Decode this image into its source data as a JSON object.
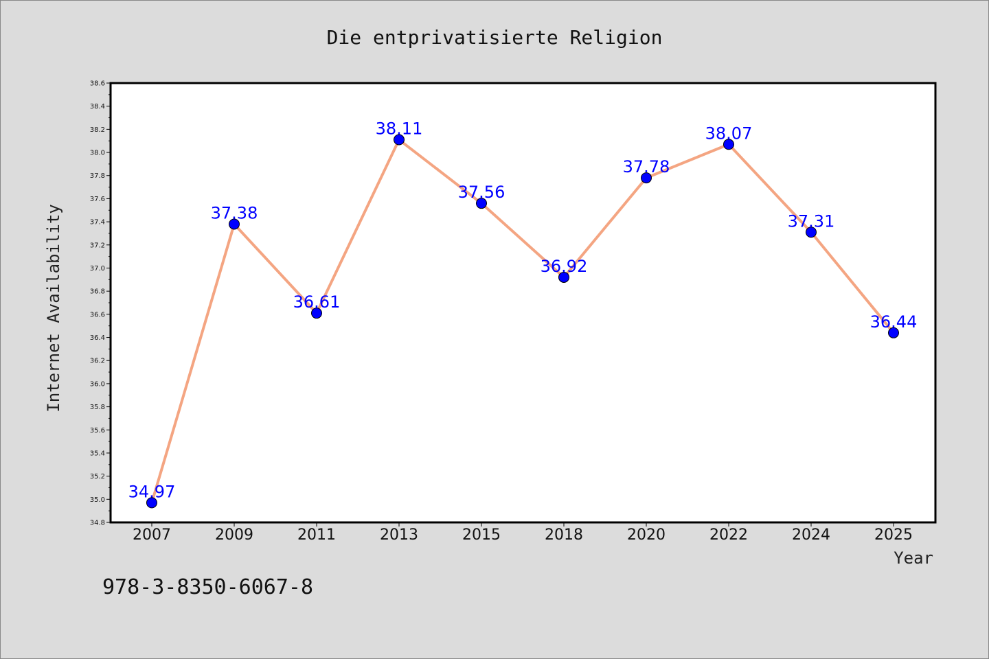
{
  "chart_data": {
    "type": "line",
    "title": "Die entprivatisierte Religion",
    "xlabel": "Year",
    "ylabel": "Internet Availability",
    "categories": [
      "2007",
      "2009",
      "2011",
      "2013",
      "2015",
      "2018",
      "2020",
      "2022",
      "2024",
      "2025"
    ],
    "series": [
      {
        "values": [
          34.97,
          37.38,
          36.61,
          38.11,
          37.56,
          36.92,
          37.78,
          38.07,
          37.31,
          36.44
        ],
        "labels": [
          "34.97",
          "37.38",
          "36.61",
          "38.11",
          "37.56",
          "36.92",
          "37.78",
          "38.07",
          "37.31",
          "36.44"
        ]
      }
    ],
    "ylim": [
      34.8,
      38.6
    ],
    "yticks": [
      "34.8",
      "35.0",
      "35.2",
      "35.4",
      "35.6",
      "35.8",
      "36.0",
      "36.2",
      "36.4",
      "36.6",
      "36.8",
      "37.0",
      "37.2",
      "37.4",
      "37.6",
      "37.8",
      "38.0",
      "38.2",
      "38.4",
      "38.6"
    ],
    "grid": false,
    "colors": {
      "line": "#f4a582",
      "marker": "#0000ff",
      "data_label": "#0000ff",
      "background": "#dcdcdc",
      "plot_background": "#ffffff"
    }
  },
  "footnote": "978-3-8350-6067-8"
}
